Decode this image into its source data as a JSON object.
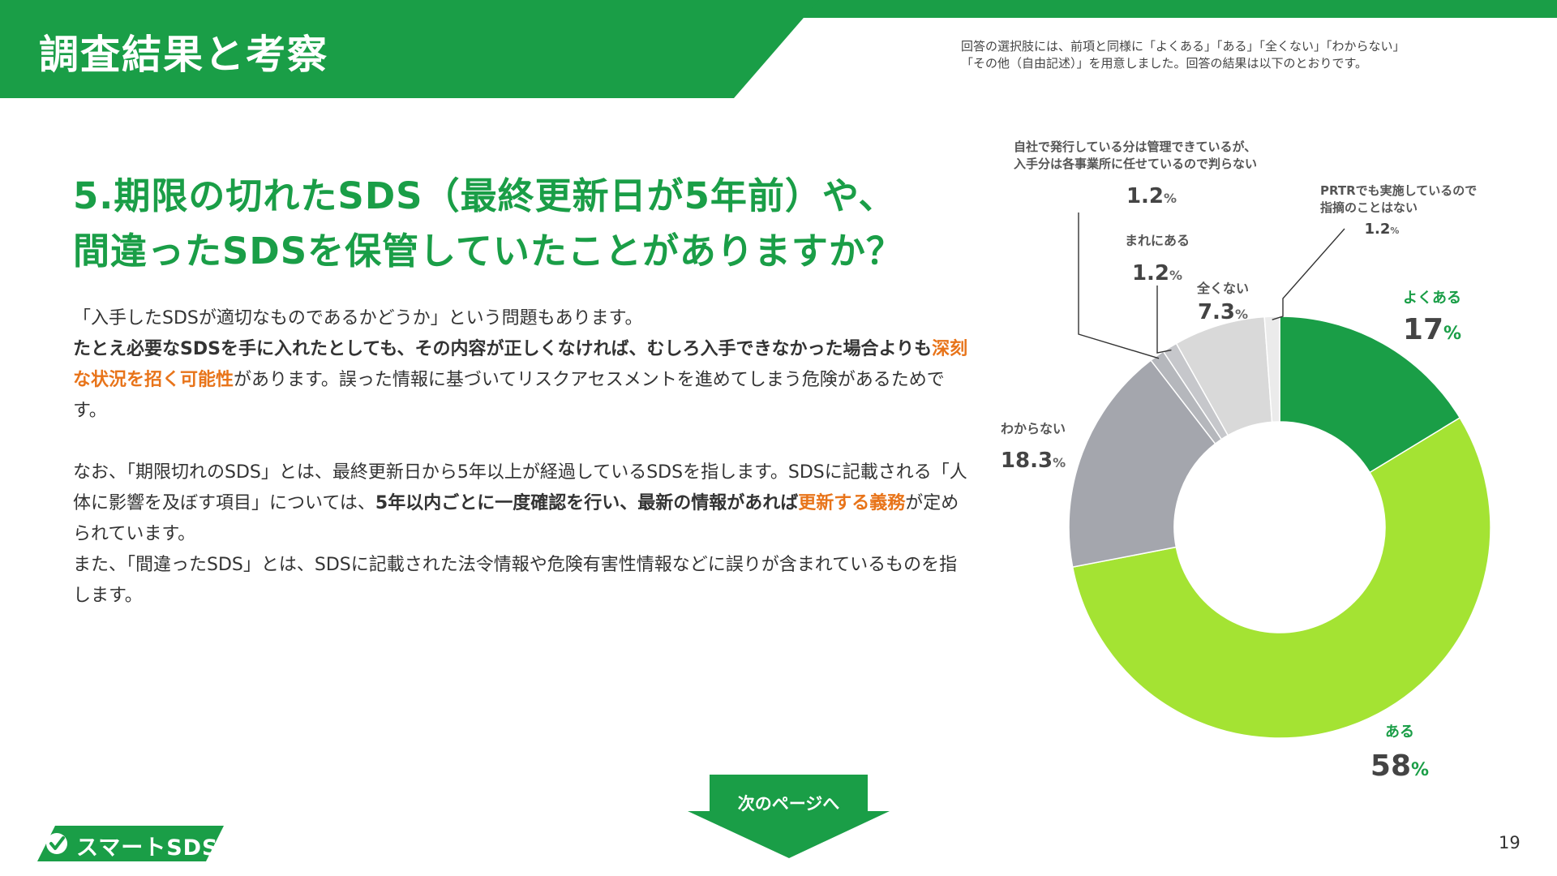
{
  "header": {
    "title": "調査結果と考察",
    "note_line1": "回答の選択肢には、前項と同様に「よくある」「ある」「全くない」「わからない」",
    "note_line2": "「その他（自由記述）」を用意しました。回答の結果は以下のとおりです。"
  },
  "question": {
    "line1": "5.期限の切れたSDS（最終更新日が5年前）や、",
    "line2": "間違ったSDSを保管していたことがありますか？"
  },
  "body": {
    "p1": "「入手したSDSが適切なものであるかどうか」という問題もあります。",
    "p2a": "たとえ必要なSDSを手に入れたとしても、その内容が正しくなければ、むしろ入手できなかった場合よりも",
    "p2_highlight": "深刻な状況を招く可能性",
    "p2b": "があります。誤った情報に基づいてリスクアセスメントを進めてしまう危険があるためです。",
    "p3a": "なお、「期限切れのSDS」とは、最終更新日から5年以上が経過しているSDSを指します。SDSに記載される「人体に影響を及ぼす項目」については、",
    "p3_bold": "5年以内ごとに一度確認を行い、最新の情報があれば",
    "p3_highlight": "更新する義務",
    "p3b": "が定められています。",
    "p4": "また、「間違ったSDS」とは、SDSに記載された法令情報や危険有害性情報などに誤りが含まれているものを指します。"
  },
  "chart_data": {
    "type": "pie",
    "title": "",
    "slices": [
      {
        "label": "よくある",
        "value": 17,
        "display": "17",
        "unit": "%",
        "color": "#1a9e47",
        "label_color": "#1a9e47"
      },
      {
        "label": "ある",
        "value": 58,
        "display": "58",
        "unit": "%",
        "color": "#a4e333",
        "label_color": "#1a9e47"
      },
      {
        "label": "わからない",
        "value": 18.3,
        "display": "18.3",
        "unit": "%",
        "color": "#a4a6ad",
        "label_color": "#555555"
      },
      {
        "label": "自社で発行している分は管理できているが、入手分は各事業所に任せているので判らない",
        "label_lines": [
          "自社で発行している分は管理できているが、",
          "入手分は各事業所に任せているので判らない"
        ],
        "value": 1.2,
        "display": "1.2",
        "unit": "%",
        "color": "#b5b7bc",
        "label_color": "#555555"
      },
      {
        "label": "まれにある",
        "value": 1.2,
        "display": "1.2",
        "unit": "%",
        "color": "#c6c7cb",
        "label_color": "#555555"
      },
      {
        "label": "全くない",
        "value": 7.3,
        "display": "7.3",
        "unit": "%",
        "color": "#d9d9d9",
        "label_color": "#555555"
      },
      {
        "label": "PRTRでも実施しているので指摘のことはない",
        "label_lines": [
          "PRTRでも実施しているので",
          "指摘のことはない"
        ],
        "value": 1.2,
        "display": "1.2",
        "unit": "%",
        "color": "#ebebeb",
        "label_color": "#555555"
      }
    ]
  },
  "next_button": {
    "label": "次のページへ"
  },
  "logo": {
    "text": "スマートSDS"
  },
  "page_number": "19",
  "colors": {
    "brand": "#1a9e47",
    "accent": "#e8741a",
    "lime": "#a4e333"
  }
}
